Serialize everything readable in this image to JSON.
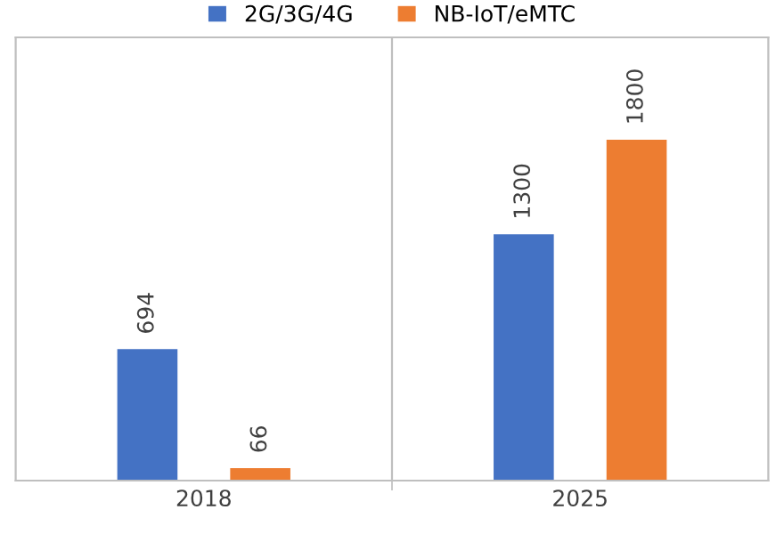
{
  "chart_data": {
    "type": "bar",
    "categories": [
      "2018",
      "2025"
    ],
    "series": [
      {
        "name": "2G/3G/4G",
        "color": "#4472c4",
        "values": [
          694,
          1300
        ]
      },
      {
        "name": "NB-IoT/eMTC",
        "color": "#ed7d31",
        "values": [
          66,
          1800
        ]
      }
    ],
    "data_labels": true,
    "legend": "top",
    "grid": "x",
    "tick_labels": "x"
  }
}
